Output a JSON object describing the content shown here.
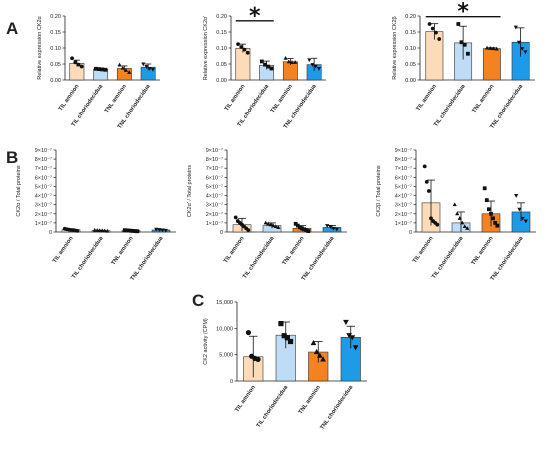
{
  "figure": {
    "panel_letters": [
      "A",
      "B",
      "C"
    ]
  },
  "chart_data": [
    {
      "id": "A1",
      "type": "bar",
      "categories": [
        "TIL amnion",
        "TIL choriodecidua",
        "TNL amnion",
        "TNL choriodecidua"
      ],
      "ylabel": "Relative expression CK2α",
      "ylim": [
        0,
        0.2
      ],
      "yticks": [
        "0.00",
        "0.05",
        "0.10",
        "0.15",
        "0.20"
      ],
      "values": [
        0.052,
        0.034,
        0.036,
        0.04
      ],
      "errors": [
        0.01,
        0.003,
        0.008,
        0.01
      ],
      "points": [
        [
          0.068,
          0.055,
          0.048,
          0.042
        ],
        [
          0.035,
          0.034,
          0.033,
          0.032
        ],
        [
          0.047,
          0.037,
          0.03,
          0.024
        ],
        [
          0.05,
          0.042,
          0.036,
          0.033
        ]
      ],
      "markers": [
        "circle",
        "square",
        "triangle",
        "triangle-down"
      ],
      "colors": [
        "#fcdcb8",
        "#bfdcf6",
        "#f58220",
        "#1e9be8"
      ],
      "significance": null
    },
    {
      "id": "A2",
      "type": "bar",
      "categories": [
        "TIL amnion",
        "TIL choriodecidua",
        "TNL amnion",
        "TNL choriodecidua"
      ],
      "ylabel": "Relative expression CK2α'",
      "ylim": [
        0,
        0.2
      ],
      "yticks": [
        "0.00",
        "0.05",
        "0.10",
        "0.15",
        "0.20"
      ],
      "values": [
        0.099,
        0.046,
        0.057,
        0.048
      ],
      "errors": [
        0.013,
        0.013,
        0.01,
        0.02
      ],
      "points": [
        [
          0.112,
          0.103,
          0.095,
          0.085
        ],
        [
          0.058,
          0.048,
          0.042,
          0.036
        ],
        [
          0.068,
          0.057,
          0.055,
          0.055
        ],
        [
          0.063,
          0.048,
          0.043,
          0.036
        ]
      ],
      "markers": [
        "circle",
        "square",
        "triangle",
        "triangle-down"
      ],
      "colors": [
        "#fcdcb8",
        "#bfdcf6",
        "#f58220",
        "#1e9be8"
      ],
      "significance": {
        "from": 0,
        "to": 1,
        "label": "*",
        "level": 0.185
      }
    },
    {
      "id": "A3",
      "type": "bar",
      "categories": [
        "TIL amnion",
        "TIL choriodecidua",
        "TNL amnion",
        "TNL choriodecidua"
      ],
      "ylabel": "Relative expression CK2β",
      "ylim": [
        0,
        0.2
      ],
      "yticks": [
        "0.00",
        "0.05",
        "0.10",
        "0.15",
        "0.20"
      ],
      "values": [
        0.151,
        0.116,
        0.098,
        0.118
      ],
      "errors": [
        0.025,
        0.052,
        0.003,
        0.045
      ],
      "points": [
        [
          0.175,
          0.161,
          0.148,
          0.128
        ],
        [
          0.175,
          0.118,
          0.11,
          0.082
        ],
        [
          0.1,
          0.099,
          0.098,
          0.097
        ],
        [
          0.165,
          0.118,
          0.098,
          0.088
        ]
      ],
      "markers": [
        "circle",
        "square",
        "triangle",
        "triangle-down"
      ],
      "colors": [
        "#fcdcb8",
        "#bfdcf6",
        "#f58220",
        "#1e9be8"
      ],
      "significance": {
        "from": 0,
        "to": 2,
        "label": "*",
        "level": 0.198
      }
    },
    {
      "id": "B1",
      "type": "bar",
      "categories": [
        "TIL amnion",
        "TIL choriodecidua",
        "TNL amnion",
        "TNL choriodecidua"
      ],
      "ylabel": "CK2α / Total proteins",
      "ylim": [
        0,
        9e-07
      ],
      "yticks": [
        "0",
        "1×10⁻⁷",
        "2×10⁻⁷",
        "3×10⁻⁷",
        "4×10⁻⁷",
        "5×10⁻⁷",
        "6×10⁻⁷",
        "7×10⁻⁷",
        "8×10⁻⁷",
        "9×10⁻⁷"
      ],
      "values": [
        2.5e-08,
        1.5e-08,
        1.5e-08,
        2.2e-08
      ],
      "errors": [
        1e-08,
        5e-09,
        5e-09,
        1e-08
      ],
      "points": [
        [
          3.5e-08,
          3e-08,
          2.6e-08,
          2.2e-08,
          2e-08,
          1.6e-08,
          1.2e-08
        ],
        [
          2e-08,
          1.8e-08,
          1.6e-08,
          1.4e-08,
          1.2e-08,
          1e-08
        ],
        [
          2e-08,
          1.8e-08,
          1.6e-08,
          1.4e-08,
          1.2e-08,
          1e-08,
          8e-09
        ],
        [
          3e-08,
          2.6e-08,
          2.2e-08,
          1.8e-08
        ]
      ],
      "markers": [
        "circle",
        "triangle",
        "square",
        "triangle-down"
      ],
      "colors": [
        "#fcdcb8",
        "#bfdcf6",
        "#f58220",
        "#1e9be8"
      ],
      "significance": null
    },
    {
      "id": "B2",
      "type": "bar",
      "categories": [
        "TIL amnion",
        "TIL choriodecidua",
        "TNL amnion",
        "TNL choriodecidua"
      ],
      "ylabel": "CK2α' / Total proteins",
      "ylim": [
        0,
        9e-07
      ],
      "yticks": [
        "0",
        "1×10⁻⁷",
        "2×10⁻⁷",
        "3×10⁻⁷",
        "4×10⁻⁷",
        "5×10⁻⁷",
        "6×10⁻⁷",
        "7×10⁻⁷",
        "8×10⁻⁷",
        "9×10⁻⁷"
      ],
      "values": [
        8e-08,
        7e-08,
        4e-08,
        5e-08
      ],
      "errors": [
        7e-08,
        3e-08,
        3e-08,
        2e-08
      ],
      "points": [
        [
          1.6e-07,
          1.2e-07,
          1e-07,
          8e-08,
          6e-08,
          4e-08,
          2e-08
        ],
        [
          1e-07,
          9e-08,
          8e-08,
          7e-08,
          6e-08,
          5e-08
        ],
        [
          9e-08,
          7e-08,
          5e-08,
          4e-08,
          3e-08,
          2e-08,
          1e-08
        ],
        [
          7e-08,
          6e-08,
          4e-08,
          3e-08
        ]
      ],
      "markers": [
        "circle",
        "triangle",
        "square",
        "triangle-down"
      ],
      "colors": [
        "#fcdcb8",
        "#bfdcf6",
        "#f58220",
        "#1e9be8"
      ],
      "significance": null
    },
    {
      "id": "B3",
      "type": "bar",
      "categories": [
        "TIL amnion",
        "TIL choriodecidua",
        "TNL amnion",
        "TNL choriodecidua"
      ],
      "ylabel": "CK2β / Total proteins",
      "ylim": [
        0,
        9e-07
      ],
      "yticks": [
        "0",
        "1×10⁻⁷",
        "2×10⁻⁷",
        "3×10⁻⁷",
        "4×10⁻⁷",
        "5×10⁻⁷",
        "6×10⁻⁷",
        "7×10⁻⁷",
        "8×10⁻⁷",
        "9×10⁻⁷"
      ],
      "values": [
        3.2e-07,
        1e-07,
        2e-07,
        2.2e-07
      ],
      "errors": [
        2.5e-07,
        1.2e-07,
        1.4e-07,
        1e-07
      ],
      "points": [
        [
          7.2e-07,
          5.5e-07,
          4.5e-07,
          1.5e-07,
          1.2e-07,
          1e-07,
          8e-08
        ],
        [
          3e-07,
          2e-07,
          1.5e-07,
          1e-07,
          6e-08,
          4e-08
        ],
        [
          4.8e-07,
          3.5e-07,
          2.5e-07,
          2e-07,
          1.5e-07,
          1e-07,
          7e-08
        ],
        [
          4e-07,
          2.5e-07,
          1.5e-07,
          1.2e-07
        ]
      ],
      "markers": [
        "circle",
        "triangle",
        "square",
        "triangle-down"
      ],
      "colors": [
        "#fcdcb8",
        "#bfdcf6",
        "#f58220",
        "#1e9be8"
      ],
      "significance": null
    },
    {
      "id": "C",
      "type": "bar",
      "categories": [
        "TIL amnion",
        "TIL choriodecidua",
        "TNL amnion",
        "TNL choriodecidua"
      ],
      "ylabel": "CK2 activity (CPM)",
      "ylim": [
        0,
        15000
      ],
      "yticks": [
        "0",
        "5,000",
        "10,000",
        "15,000"
      ],
      "values": [
        4600,
        8700,
        5500,
        8300
      ],
      "errors": [
        3900,
        2500,
        2000,
        2100
      ],
      "points": [
        [
          9200,
          4700,
          4300,
          4100
        ],
        [
          10900,
          8600,
          8200,
          7500
        ],
        [
          7200,
          5500,
          4800,
          4100
        ],
        [
          11200,
          8700,
          8300,
          6400
        ]
      ],
      "markers": [
        "circle",
        "square",
        "triangle",
        "triangle-down"
      ],
      "colors": [
        "#fcdcb8",
        "#bfdcf6",
        "#f58220",
        "#1e9be8"
      ],
      "significance": null
    }
  ]
}
